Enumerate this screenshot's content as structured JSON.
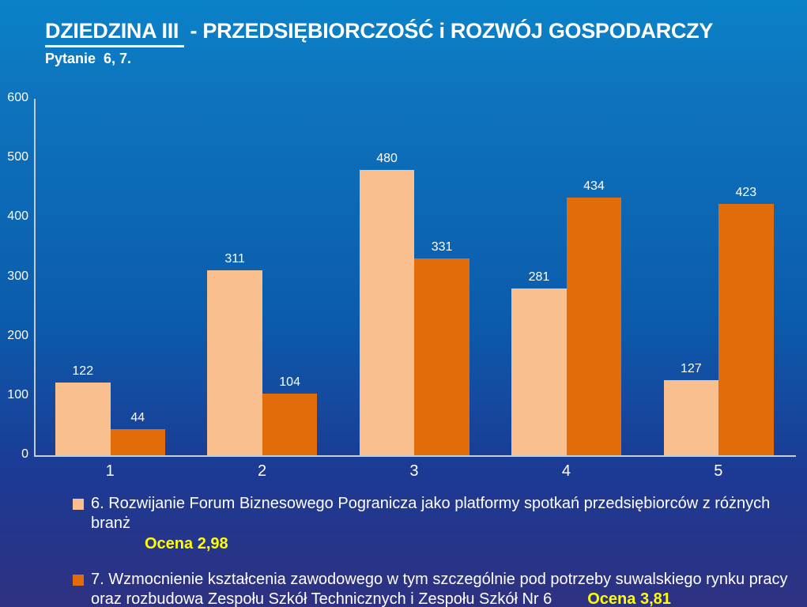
{
  "slide": {
    "title_underlined": "DZIEDZINA III ",
    "title_rest": " - PRZEDSIĘBIORCZOŚĆ i ROZWÓJ GOSPODARCZY",
    "subtitle": "Pytanie  6, 7."
  },
  "colors": {
    "background_top": "#0a82c8",
    "background_middle": "#0b5cac",
    "background_bottom": "#2f3181",
    "series6": "#FABF8F",
    "series7": "#E36C0A",
    "text": "#FFFFFF",
    "ocena": "#FFFF00",
    "axis": "#C6CCD3"
  },
  "chart_data": {
    "type": "bar",
    "categories": [
      "1",
      "2",
      "3",
      "4",
      "5"
    ],
    "series": [
      {
        "name": "6. Rozwijanie Forum Biznesowego Pogranicza jako platformy spotkań przedsiębiorców z różnych branż",
        "color": "#FABF8F",
        "values": [
          122,
          311,
          480,
          281,
          127
        ]
      },
      {
        "name": "7. Wzmocnienie kształcenia zawodowego w tym szczególnie pod potrzeby suwalskiego rynku pracy oraz rozbudowa Zespołu Szkół Technicznych i Zespołu Szkół Nr 6",
        "color": "#E36C0A",
        "values": [
          44,
          104,
          331,
          434,
          423
        ]
      }
    ],
    "ylim": [
      0,
      600
    ],
    "yticks": [
      0,
      100,
      200,
      300,
      400,
      500,
      600
    ],
    "grid": false,
    "data_labels": true,
    "legend_position": "bottom",
    "annotations": [
      "Ocena 2,98",
      "Ocena 3,81"
    ]
  },
  "legend": {
    "item6": {
      "label": "6. Rozwijanie Forum Biznesowego Pogranicza jako platformy spotkań przedsiębiorców z różnych branż",
      "ocena": "Ocena 2,98"
    },
    "item7": {
      "line1": "7. Wzmocnienie kształcenia zawodowego w tym szczególnie pod potrzeby suwalskiego rynku pracy",
      "line2": "oraz rozbudowa Zespołu Szkół Technicznych i Zespołu Szkół Nr 6",
      "ocena": "Ocena 3,81"
    }
  }
}
